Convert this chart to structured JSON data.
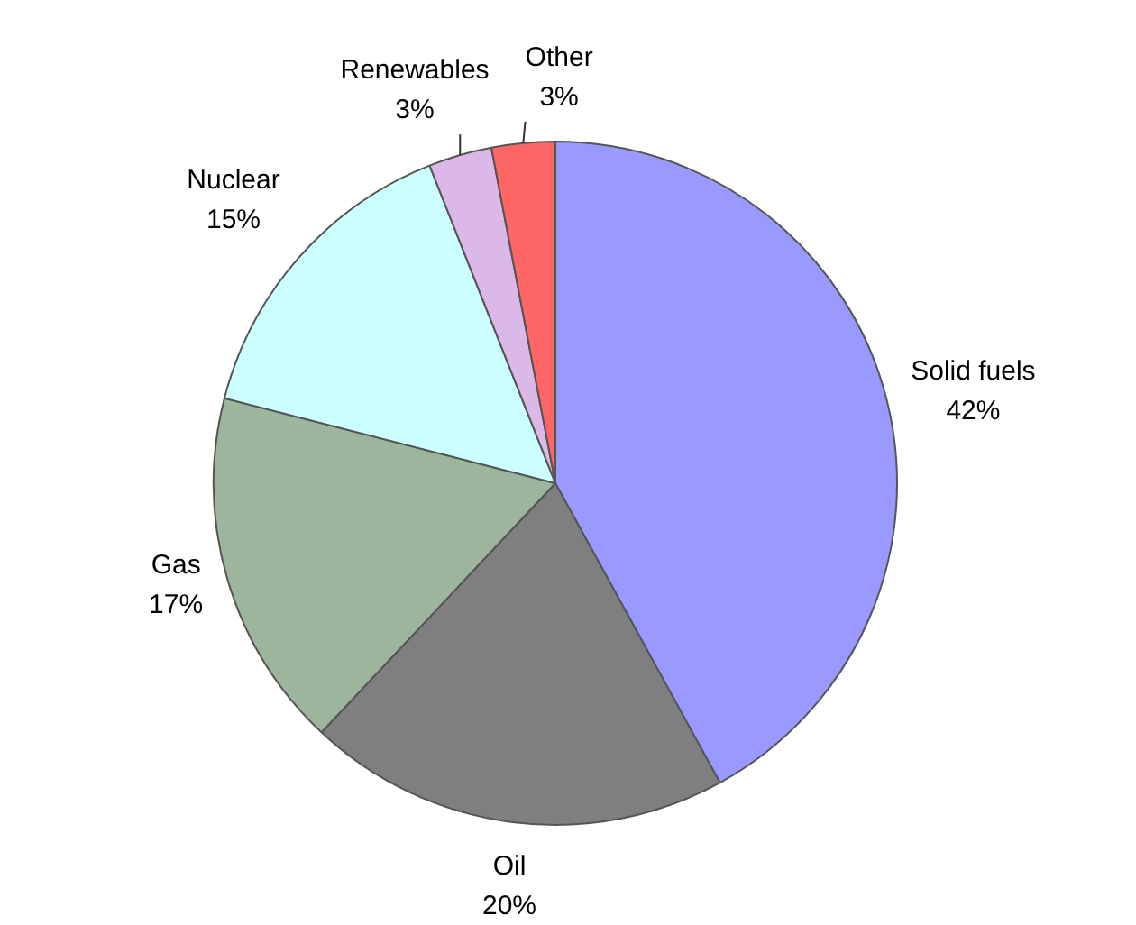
{
  "chart_data": {
    "type": "pie",
    "categories": [
      "Solid fuels",
      "Oil",
      "Gas",
      "Nuclear",
      "Renewables",
      "Other"
    ],
    "values": [
      42,
      20,
      17,
      15,
      3,
      3
    ],
    "value_labels": [
      "42%",
      "20%",
      "17%",
      "15%",
      "3%",
      "3%"
    ],
    "colors": [
      "#9999ff",
      "#7f7f7f",
      "#9db59d",
      "#ccffff",
      "#dcb8e8",
      "#ff6666"
    ]
  }
}
